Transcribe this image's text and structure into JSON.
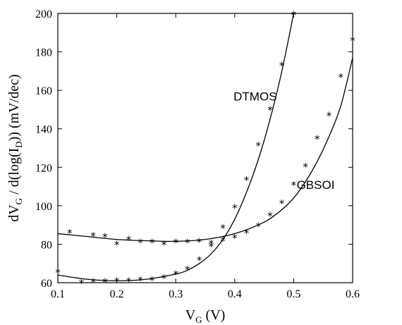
{
  "chart_data": {
    "type": "scatter",
    "xlim": [
      0.1,
      0.6
    ],
    "ylim": [
      60,
      200
    ],
    "x_ticks": [
      0.1,
      0.2,
      0.3,
      0.4,
      0.5,
      0.6
    ],
    "y_ticks": [
      60,
      80,
      100,
      120,
      140,
      160,
      180,
      200
    ],
    "x_tick_labels": [
      "0.1",
      "0.2",
      "0.3",
      "0.4",
      "0.5",
      "0.6"
    ],
    "y_tick_labels": [
      "60",
      "80",
      "100",
      "120",
      "140",
      "160",
      "180",
      "200"
    ],
    "xlabel": {
      "main": "V",
      "sub": "G",
      "rest": " (V)"
    },
    "ylabel": {
      "p1": "dV",
      "s1": "G",
      "p2": " / d(log(I",
      "s2": "D",
      "p3": ")) (mV/dec)"
    },
    "grid": false,
    "series": [
      {
        "name": "DTMOS",
        "marker": "*",
        "points": [
          [
            0.1,
            65.5
          ],
          [
            0.14,
            60.0
          ],
          [
            0.16,
            60.5
          ],
          [
            0.18,
            60.5
          ],
          [
            0.2,
            61.0
          ],
          [
            0.22,
            61.0
          ],
          [
            0.24,
            61.5
          ],
          [
            0.26,
            61.5
          ],
          [
            0.28,
            62.5
          ],
          [
            0.3,
            64.5
          ],
          [
            0.32,
            67.0
          ],
          [
            0.34,
            72.0
          ],
          [
            0.36,
            79.0
          ],
          [
            0.38,
            88.5
          ],
          [
            0.4,
            99.0
          ],
          [
            0.42,
            113.5
          ],
          [
            0.44,
            131.5
          ],
          [
            0.46,
            150.0
          ],
          [
            0.48,
            173.0
          ],
          [
            0.5,
            199.5
          ]
        ],
        "fit": [
          [
            0.1,
            64.0
          ],
          [
            0.15,
            61.8
          ],
          [
            0.2,
            61.0
          ],
          [
            0.25,
            61.8
          ],
          [
            0.3,
            64.5
          ],
          [
            0.32,
            66.5
          ],
          [
            0.34,
            70.0
          ],
          [
            0.36,
            75.0
          ],
          [
            0.38,
            82.5
          ],
          [
            0.4,
            93.0
          ],
          [
            0.42,
            107.0
          ],
          [
            0.44,
            124.0
          ],
          [
            0.46,
            145.0
          ],
          [
            0.48,
            170.0
          ],
          [
            0.5,
            200.0
          ]
        ]
      },
      {
        "name": "GBSOI",
        "marker": "*",
        "points": [
          [
            0.12,
            86.0
          ],
          [
            0.16,
            84.5
          ],
          [
            0.18,
            84.0
          ],
          [
            0.2,
            80.0
          ],
          [
            0.22,
            82.5
          ],
          [
            0.24,
            81.0
          ],
          [
            0.26,
            81.0
          ],
          [
            0.28,
            80.0
          ],
          [
            0.3,
            81.0
          ],
          [
            0.32,
            81.0
          ],
          [
            0.34,
            81.5
          ],
          [
            0.36,
            80.5
          ],
          [
            0.38,
            82.0
          ],
          [
            0.4,
            83.5
          ],
          [
            0.42,
            86.0
          ],
          [
            0.44,
            89.5
          ],
          [
            0.46,
            95.0
          ],
          [
            0.48,
            101.5
          ],
          [
            0.5,
            111.0
          ],
          [
            0.52,
            120.5
          ],
          [
            0.54,
            135.0
          ],
          [
            0.56,
            147.0
          ],
          [
            0.58,
            167.0
          ],
          [
            0.6,
            186.0
          ]
        ],
        "fit": [
          [
            0.1,
            85.5
          ],
          [
            0.15,
            84.0
          ],
          [
            0.2,
            82.5
          ],
          [
            0.25,
            81.8
          ],
          [
            0.3,
            81.5
          ],
          [
            0.35,
            82.5
          ],
          [
            0.4,
            85.5
          ],
          [
            0.45,
            91.5
          ],
          [
            0.48,
            98.0
          ],
          [
            0.5,
            104.0
          ],
          [
            0.52,
            112.5
          ],
          [
            0.54,
            123.0
          ],
          [
            0.56,
            136.0
          ],
          [
            0.58,
            152.0
          ],
          [
            0.6,
            177.0
          ]
        ]
      }
    ],
    "annotations": [
      {
        "text": "DTMOS",
        "x": 0.398,
        "y": 157
      },
      {
        "text": "GBSOI",
        "x": 0.505,
        "y": 111
      }
    ]
  }
}
